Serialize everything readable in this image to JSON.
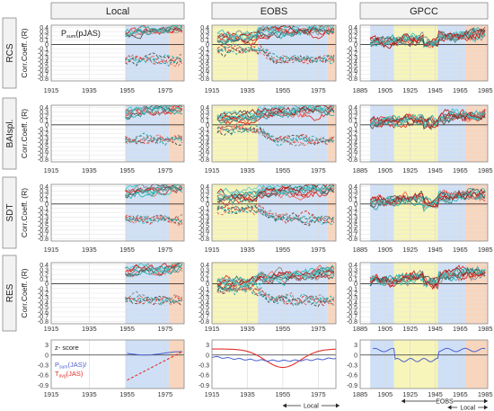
{
  "chart_data": {
    "type": "line",
    "columns": [
      "Local",
      "EOBS",
      "GPCC"
    ],
    "rows": [
      "RCS",
      "BAIspl.",
      "SDT",
      "RES"
    ],
    "ylabel": "Corr.Coeff. (R)",
    "main_yticks": [
      "0.4",
      "0.3",
      "0.2",
      "0.1",
      "0",
      "-0.1",
      "-0.2",
      "-0.3",
      "-0.4",
      "-0.5",
      "-0.6",
      "-0.7",
      "-0.8"
    ],
    "bottom_yticks": [
      "3",
      "0",
      "-0.3",
      "-0.6",
      "-0.9"
    ],
    "xticks": {
      "Local": [
        "1915",
        "1935",
        "1955",
        "1975"
      ],
      "EOBS": [
        "1915",
        "1935",
        "1955",
        "1975"
      ],
      "GPCC": [
        "1885",
        "1905",
        "1925",
        "1945",
        "1965",
        "1985"
      ]
    },
    "title_sub": "sum",
    "title_prefix": "P",
    "title_season": "(pJAS)",
    "legend": {
      "z": "z- score",
      "p_prefix": "P",
      "p_sub": "sum",
      "p_season": "(JAS)/",
      "t_prefix": "T",
      "t_sub": "avg",
      "t_season": "(JAS)"
    },
    "spans": {
      "eobs_local": "Local",
      "gpcc_eobs": "EOBS",
      "gpcc_local": "Local"
    }
  }
}
